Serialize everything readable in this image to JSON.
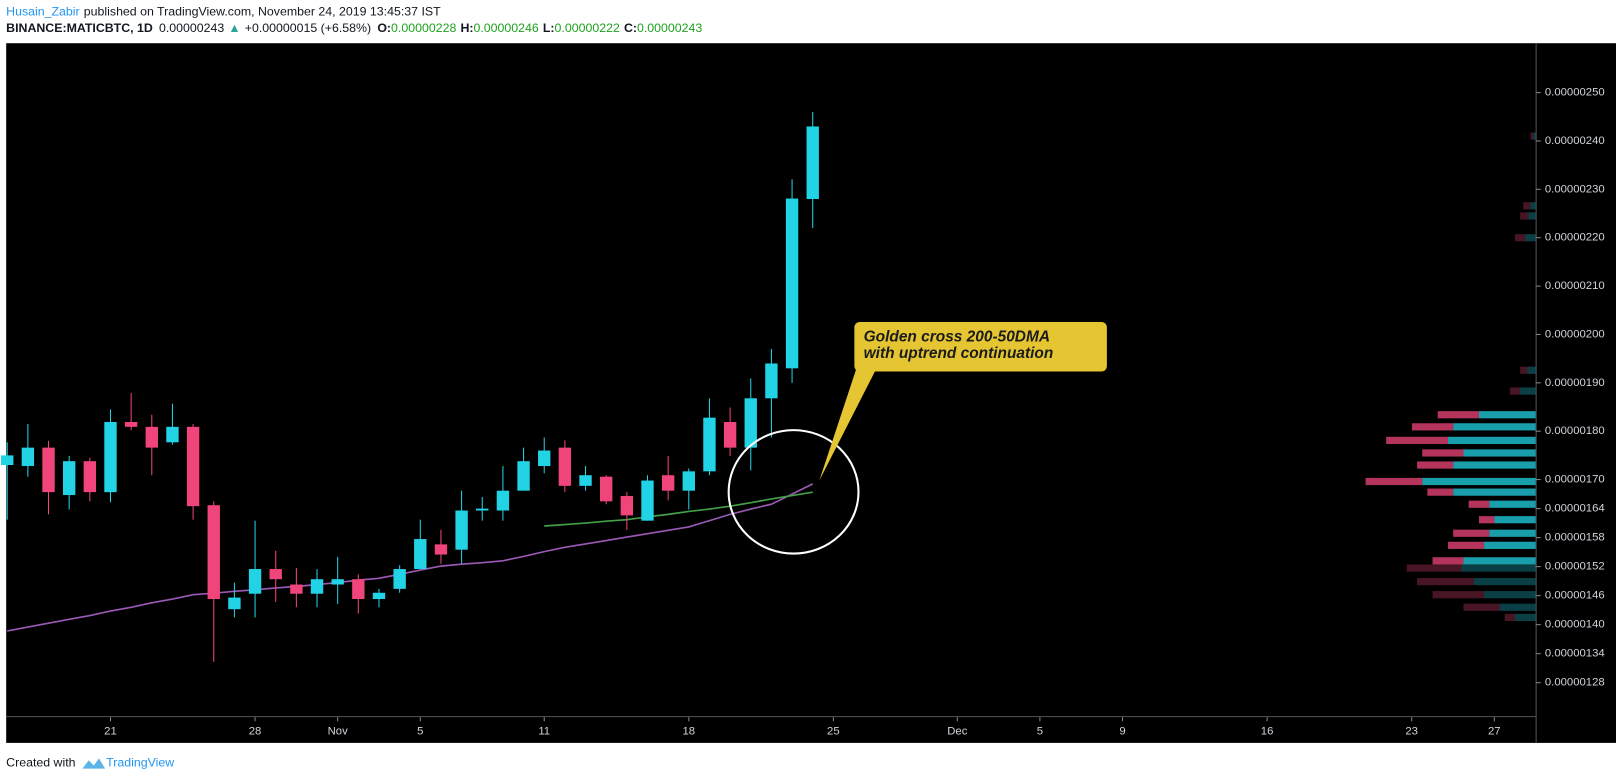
{
  "header": {
    "author": "Husain_Zabir",
    "published": "published on TradingView.com, November 24, 2019 13:45:37 IST",
    "symbol": "BINANCE:MATICBTC, 1D",
    "last": "0.00000243",
    "arrow": "▲",
    "change": "+0.00000015 (+6.58%)",
    "ohlc": [
      {
        "label": "O:",
        "value": "0.00000228"
      },
      {
        "label": "H:",
        "value": "0.00000246"
      },
      {
        "label": "L:",
        "value": "0.00000222"
      },
      {
        "label": "C:",
        "value": "0.00000243"
      }
    ]
  },
  "chart_data": {
    "type": "candlestick",
    "up_color": "#22d3e6",
    "down_color": "#f0457a",
    "x": [
      "2019-10-16",
      "2019-10-17",
      "2019-10-18",
      "2019-10-19",
      "2019-10-20",
      "2019-10-21",
      "2019-10-22",
      "2019-10-23",
      "2019-10-24",
      "2019-10-25",
      "2019-10-26",
      "2019-10-27",
      "2019-10-28",
      "2019-10-29",
      "2019-10-30",
      "2019-10-31",
      "2019-11-01",
      "2019-11-02",
      "2019-11-03",
      "2019-11-04",
      "2019-11-05",
      "2019-11-06",
      "2019-11-07",
      "2019-11-08",
      "2019-11-09",
      "2019-11-10",
      "2019-11-11",
      "2019-11-12",
      "2019-11-13",
      "2019-11-14",
      "2019-11-15",
      "2019-11-16",
      "2019-11-17",
      "2019-11-18",
      "2019-11-19",
      "2019-11-20",
      "2019-11-21",
      "2019-11-22",
      "2019-11-23",
      "2019-11-24"
    ],
    "open": [
      1.73e-06,
      1.728e-06,
      1.766e-06,
      1.668e-06,
      1.738e-06,
      1.674e-06,
      1.819e-06,
      1.809e-06,
      1.777e-06,
      1.809e-06,
      1.647e-06,
      1.432e-06,
      1.464e-06,
      1.515e-06,
      1.483e-06,
      1.464e-06,
      1.483e-06,
      1.494e-06,
      1.453e-06,
      1.474e-06,
      1.515e-06,
      1.566e-06,
      1.555e-06,
      1.636e-06,
      1.636e-06,
      1.677e-06,
      1.728e-06,
      1.766e-06,
      1.687e-06,
      1.706e-06,
      1.666e-06,
      1.615e-06,
      1.709e-06,
      1.677e-06,
      1.717e-06,
      1.819e-06,
      1.766e-06,
      1.868e-06,
      1.93e-06,
      2.28e-06
    ],
    "high": [
      1.777e-06,
      1.815e-06,
      1.78e-06,
      1.749e-06,
      1.745e-06,
      1.845e-06,
      1.879e-06,
      1.834e-06,
      1.857e-06,
      1.815e-06,
      1.655e-06,
      1.487e-06,
      1.615e-06,
      1.553e-06,
      1.517e-06,
      1.515e-06,
      1.54e-06,
      1.504e-06,
      1.474e-06,
      1.523e-06,
      1.617e-06,
      1.596e-06,
      1.677e-06,
      1.664e-06,
      1.728e-06,
      1.766e-06,
      1.787e-06,
      1.781e-06,
      1.728e-06,
      1.709e-06,
      1.674e-06,
      1.709e-06,
      1.749e-06,
      1.723e-06,
      1.868e-06,
      1.849e-06,
      1.909e-06,
      1.97e-06,
      2.321e-06,
      2.46e-06
    ],
    "low": [
      1.617e-06,
      1.706e-06,
      1.628e-06,
      1.638e-06,
      1.655e-06,
      1.653e-06,
      1.802e-06,
      1.709e-06,
      1.772e-06,
      1.617e-06,
      1.323e-06,
      1.415e-06,
      1.415e-06,
      1.447e-06,
      1.436e-06,
      1.436e-06,
      1.443e-06,
      1.423e-06,
      1.436e-06,
      1.466e-06,
      1.515e-06,
      1.526e-06,
      1.526e-06,
      1.615e-06,
      1.615e-06,
      1.677e-06,
      1.713e-06,
      1.674e-06,
      1.677e-06,
      1.649e-06,
      1.596e-06,
      1.615e-06,
      1.657e-06,
      1.638e-06,
      1.709e-06,
      1.749e-06,
      1.719e-06,
      1.787e-06,
      1.9e-06,
      2.22e-06
    ],
    "close": [
      1.75e-06,
      1.766e-06,
      1.674e-06,
      1.738e-06,
      1.674e-06,
      1.819e-06,
      1.809e-06,
      1.766e-06,
      1.809e-06,
      1.645e-06,
      1.453e-06,
      1.456e-06,
      1.515e-06,
      1.494e-06,
      1.464e-06,
      1.494e-06,
      1.494e-06,
      1.453e-06,
      1.466e-06,
      1.515e-06,
      1.577e-06,
      1.545e-06,
      1.636e-06,
      1.64e-06,
      1.677e-06,
      1.738e-06,
      1.76e-06,
      1.687e-06,
      1.709e-06,
      1.655e-06,
      1.626e-06,
      1.698e-06,
      1.677e-06,
      1.717e-06,
      1.828e-06,
      1.766e-06,
      1.868e-06,
      1.94e-06,
      2.281e-06,
      2.43e-06
    ],
    "series": [
      {
        "color": "#9b59b6",
        "values": [
          1.387e-06,
          1.395e-06,
          1.403e-06,
          1.411e-06,
          1.419e-06,
          1.428e-06,
          1.436e-06,
          1.445e-06,
          1.453e-06,
          1.462e-06,
          1.465e-06,
          1.469e-06,
          1.472e-06,
          1.476e-06,
          1.479e-06,
          1.483e-06,
          1.487e-06,
          1.492e-06,
          1.496e-06,
          1.504e-06,
          1.513e-06,
          1.521e-06,
          1.525e-06,
          1.528e-06,
          1.532e-06,
          1.541e-06,
          1.551e-06,
          1.56e-06,
          1.567e-06,
          1.574e-06,
          1.581e-06,
          1.588e-06,
          1.595e-06,
          1.602e-06,
          1.615e-06,
          1.628e-06,
          1.639e-06,
          1.649e-06,
          1.67e-06,
          1.691e-06
        ]
      },
      {
        "color": "#43a047",
        "values": [
          null,
          null,
          null,
          null,
          null,
          null,
          null,
          null,
          null,
          null,
          null,
          null,
          null,
          null,
          null,
          null,
          null,
          null,
          null,
          null,
          null,
          null,
          null,
          null,
          null,
          null,
          1.604e-06,
          1.607e-06,
          1.61e-06,
          1.614e-06,
          1.617e-06,
          1.623e-06,
          1.628e-06,
          1.634e-06,
          1.639e-06,
          1.645e-06,
          1.652e-06,
          1.66e-06,
          1.667e-06,
          1.674e-06
        ]
      }
    ],
    "xlim": [
      "2019-10-16",
      "2019-12-29"
    ],
    "xticks": [
      {
        "value": "2019-10-21",
        "label": "21"
      },
      {
        "value": "2019-10-28",
        "label": "28"
      },
      {
        "value": "2019-11-01",
        "label": "Nov"
      },
      {
        "value": "2019-11-05",
        "label": "5"
      },
      {
        "value": "2019-11-11",
        "label": "11"
      },
      {
        "value": "2019-11-18",
        "label": "18"
      },
      {
        "value": "2019-11-25",
        "label": "25"
      },
      {
        "value": "2019-12-01",
        "label": "Dec"
      },
      {
        "value": "2019-12-05",
        "label": "5"
      },
      {
        "value": "2019-12-09",
        "label": "9"
      },
      {
        "value": "2019-12-16",
        "label": "16"
      },
      {
        "value": "2019-12-23",
        "label": "23"
      },
      {
        "value": "2019-12-27",
        "label": "27"
      }
    ],
    "ylim": [
      1.213e-06,
      2.6e-06
    ],
    "yticks": [
      {
        "value": 2.5e-06,
        "label": "0.00000250"
      },
      {
        "value": 2.4e-06,
        "label": "0.00000240"
      },
      {
        "value": 2.3e-06,
        "label": "0.00000230"
      },
      {
        "value": 2.2e-06,
        "label": "0.00000220"
      },
      {
        "value": 2.1e-06,
        "label": "0.00000210"
      },
      {
        "value": 2e-06,
        "label": "0.00000200"
      },
      {
        "value": 1.9e-06,
        "label": "0.00000190"
      },
      {
        "value": 1.8e-06,
        "label": "0.00000180"
      },
      {
        "value": 1.7e-06,
        "label": "0.00000170"
      },
      {
        "value": 1.64e-06,
        "label": "0.00000164"
      },
      {
        "value": 1.58e-06,
        "label": "0.00000158"
      },
      {
        "value": 1.52e-06,
        "label": "0.00000152"
      },
      {
        "value": 1.46e-06,
        "label": "0.00000146"
      },
      {
        "value": 1.4e-06,
        "label": "0.00000140"
      },
      {
        "value": 1.34e-06,
        "label": "0.00000134"
      },
      {
        "value": 1.28e-06,
        "label": "0.00000128"
      }
    ],
    "annotation": [
      "Golden cross 200-50DMA",
      "with uptrend continuation"
    ],
    "volume_profile": {
      "value_area": [
        1.52e-06,
        1.84e-06
      ],
      "prices": [
        2.41e-06,
        2.266e-06,
        2.245e-06,
        2.2e-06,
        1.926e-06,
        1.883e-06,
        1.834e-06,
        1.809e-06,
        1.781e-06,
        1.755e-06,
        1.73e-06,
        1.696e-06,
        1.674e-06,
        1.649e-06,
        1.617e-06,
        1.589e-06,
        1.564e-06,
        1.532e-06,
        1.517e-06,
        1.489e-06,
        1.462e-06,
        1.436e-06,
        1.415e-06
      ],
      "up": [
        2,
        5,
        7,
        10,
        8,
        15,
        55,
        80,
        85,
        70,
        80,
        110,
        80,
        45,
        40,
        45,
        50,
        70,
        72,
        60,
        50,
        35,
        20
      ],
      "down": [
        3,
        7,
        8,
        10,
        7,
        10,
        40,
        40,
        60,
        40,
        35,
        55,
        25,
        20,
        15,
        35,
        35,
        30,
        53,
        55,
        50,
        35,
        10
      ]
    }
  },
  "footer": {
    "created": "Created with",
    "brand": "TradingView"
  }
}
